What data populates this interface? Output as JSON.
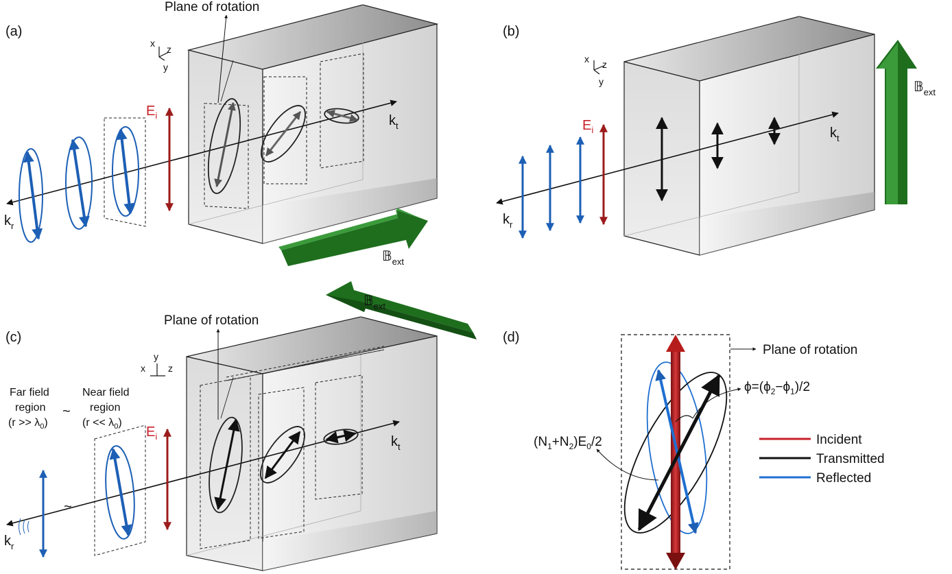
{
  "panels": {
    "a": {
      "tag": "(a)",
      "plane": "Plane of rotation",
      "axis_x": "x",
      "axis_y": "y",
      "axis_z": "z",
      "E": "E",
      "E_sub": "i",
      "kt": "k",
      "kt_sub": "t",
      "kr": "k",
      "kr_sub": "r",
      "B": "𝔹",
      "B_sub": "ext"
    },
    "b": {
      "tag": "(b)",
      "axis_x": "x",
      "axis_y": "y",
      "axis_z": "z",
      "E": "E",
      "E_sub": "i",
      "kt": "k",
      "kt_sub": "t",
      "kr": "k",
      "kr_sub": "r",
      "B": "𝔹",
      "B_sub": "ext"
    },
    "c": {
      "tag": "(c)",
      "plane": "Plane of rotation",
      "axis_x": "x",
      "axis_y": "y",
      "axis_z": "z",
      "E": "E",
      "E_sub": "i",
      "kt": "k",
      "kt_sub": "t",
      "kr": "k",
      "kr_sub": "r",
      "B": "𝔹",
      "B_sub": "ext",
      "far1": "Far field",
      "far2": "region",
      "far3": "(r >> λ",
      "far3_sub": "0",
      "far3_end": ")",
      "near1": "Near field",
      "near2": "region",
      "near3": "(r << λ",
      "near3_sub": "0",
      "near3_end": ")",
      "tilde": "~"
    },
    "d": {
      "tag": "(d)",
      "plane": "Plane of rotation",
      "phi": "ϕ=(ϕ",
      "phi_s2": "2",
      "phi_mid": "−ϕ",
      "phi_s1": "1",
      "phi_end": ")/2",
      "amp_a": "(N",
      "amp_s1": "1",
      "amp_b": "+N",
      "amp_s2": "2",
      "amp_c": ")E",
      "amp_s0": "0",
      "amp_d": "/2",
      "legend": [
        {
          "label": "Incident",
          "color": "#c8202a"
        },
        {
          "label": "Transmitted",
          "color": "#111111"
        },
        {
          "label": "Reflected",
          "color": "#1f6fd0"
        }
      ]
    }
  },
  "colors": {
    "incident": "#9c1b1b",
    "reflected": "#1c5fb5",
    "transmitted": "#111111",
    "field": "#1e6e1e"
  }
}
